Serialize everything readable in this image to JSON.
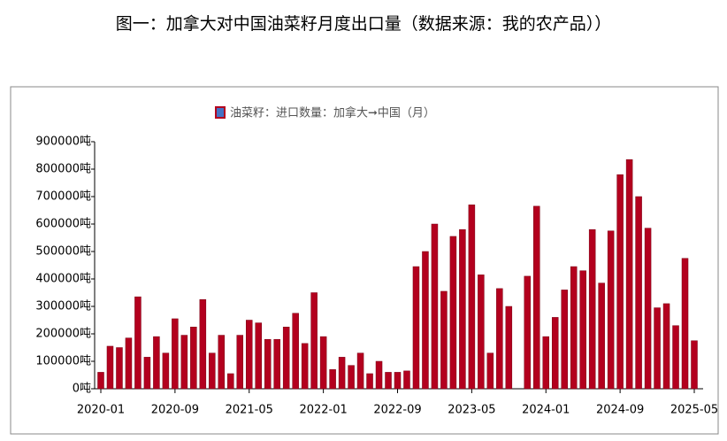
{
  "chart_data": {
    "type": "bar",
    "title": "图一：加拿大对中国油菜籽月度出口量（数据来源：我的农产品））",
    "categories": [
      "2020-01",
      null,
      null,
      null,
      null,
      null,
      null,
      null,
      "2020-09",
      null,
      null,
      null,
      null,
      null,
      null,
      null,
      "2021-05",
      null,
      null,
      null,
      null,
      null,
      null,
      null,
      "2022-01",
      null,
      null,
      null,
      null,
      null,
      null,
      null,
      "2022-09",
      null,
      null,
      null,
      null,
      null,
      null,
      null,
      "2023-05",
      null,
      null,
      null,
      null,
      null,
      null,
      null,
      "2024-01",
      null,
      null,
      null,
      null,
      null,
      null,
      null,
      "2024-09",
      null,
      null,
      null,
      null,
      null,
      null,
      null,
      "2025-05"
    ],
    "series": [
      {
        "name": "油菜籽：进口数量：加拿大➞中国（月）",
        "color": "#b3001e",
        "values": [
          60000,
          155000,
          150000,
          185000,
          335000,
          115000,
          190000,
          130000,
          255000,
          195000,
          225000,
          325000,
          130000,
          195000,
          55000,
          195000,
          250000,
          240000,
          180000,
          180000,
          225000,
          275000,
          165000,
          350000,
          190000,
          70000,
          115000,
          85000,
          130000,
          55000,
          100000,
          60000,
          60000,
          65000,
          445000,
          500000,
          600000,
          355000,
          555000,
          580000,
          670000,
          415000,
          130000,
          365000,
          300000,
          null,
          410000,
          665000,
          190000,
          260000,
          360000,
          445000,
          430000,
          580000,
          385000,
          575000,
          780000,
          835000,
          700000,
          585000,
          295000,
          310000,
          230000,
          475000,
          175000
        ]
      }
    ],
    "ylim": [
      0,
      900000
    ],
    "yticks": [
      {
        "value": 0,
        "label": "0吨"
      },
      {
        "value": 100000,
        "label": "100000吨"
      },
      {
        "value": 200000,
        "label": "200000吨"
      },
      {
        "value": 300000,
        "label": "300000吨"
      },
      {
        "value": 400000,
        "label": "400000吨"
      },
      {
        "value": 500000,
        "label": "500000吨"
      },
      {
        "value": 600000,
        "label": "600000吨"
      },
      {
        "value": 700000,
        "label": "700000吨"
      },
      {
        "value": 800000,
        "label": "800000吨"
      },
      {
        "value": 900000,
        "label": "900000吨"
      }
    ],
    "legend": "top"
  }
}
